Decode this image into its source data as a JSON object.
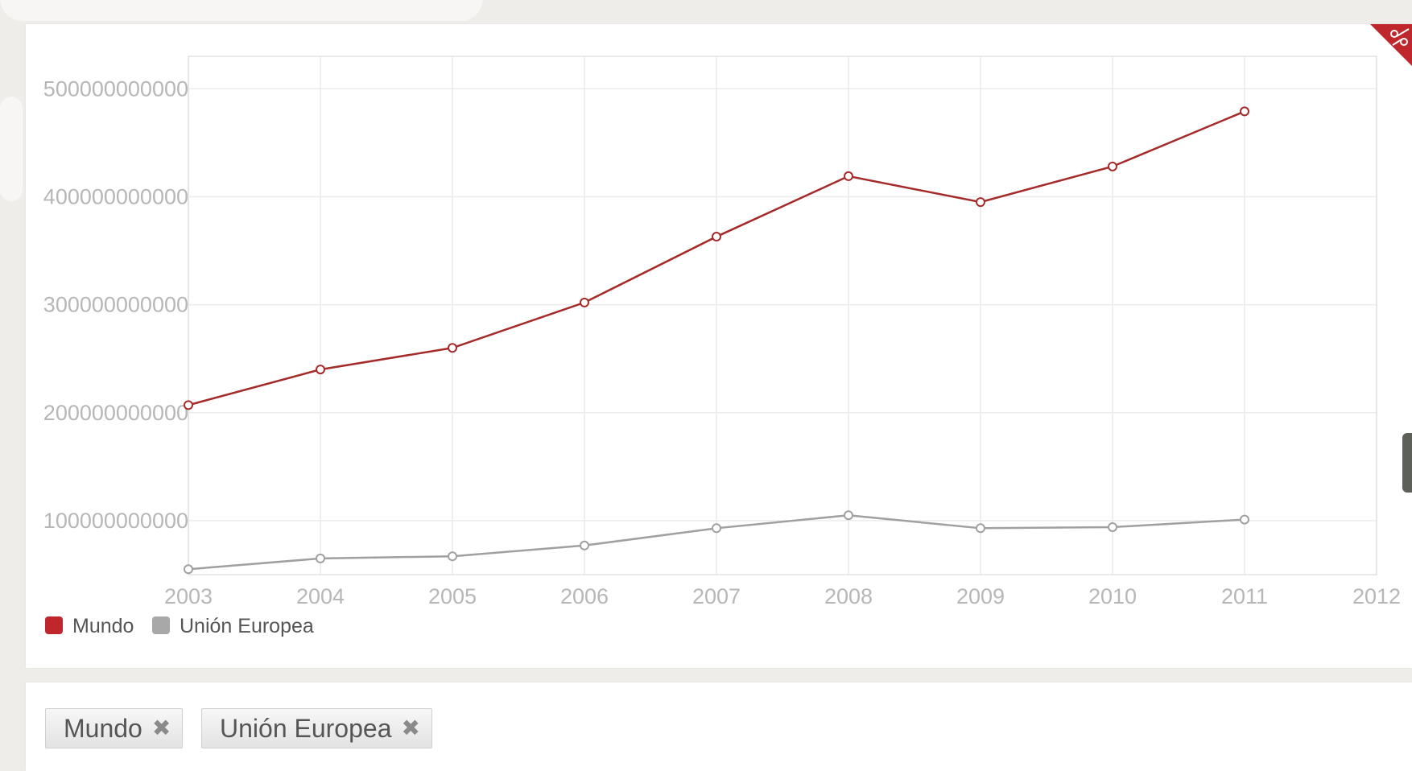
{
  "chart_data": {
    "type": "line",
    "x": [
      2003,
      2004,
      2005,
      2006,
      2007,
      2008,
      2009,
      2010,
      2011
    ],
    "xlim": [
      2003,
      2012
    ],
    "ylim": [
      50000000000,
      530000000000
    ],
    "yticks": [
      100000000000,
      200000000000,
      300000000000,
      400000000000,
      500000000000
    ],
    "xticks": [
      2003,
      2004,
      2005,
      2006,
      2007,
      2008,
      2009,
      2010,
      2011,
      2012
    ],
    "grid": true,
    "legend_position": "bottom-left",
    "series": [
      {
        "name": "Mundo",
        "color": "#a52a2a",
        "values": [
          207000000000,
          240000000000,
          260000000000,
          302000000000,
          363000000000,
          419000000000,
          395000000000,
          428000000000,
          479000000000
        ]
      },
      {
        "name": "Unión Europea",
        "color": "#a0a0a0",
        "values": [
          55000000000,
          65000000000,
          67000000000,
          77000000000,
          93000000000,
          105000000000,
          93000000000,
          94000000000,
          101000000000
        ]
      }
    ]
  },
  "filters": {
    "tags": [
      {
        "label": "Mundo",
        "remove_icon": "close-icon"
      },
      {
        "label": "Unión Europea",
        "remove_icon": "close-icon"
      }
    ]
  },
  "toolbar": {
    "corner_icon": "scissors-icon"
  },
  "colors": {
    "accent": "#c0272d",
    "background": "#efedea"
  }
}
